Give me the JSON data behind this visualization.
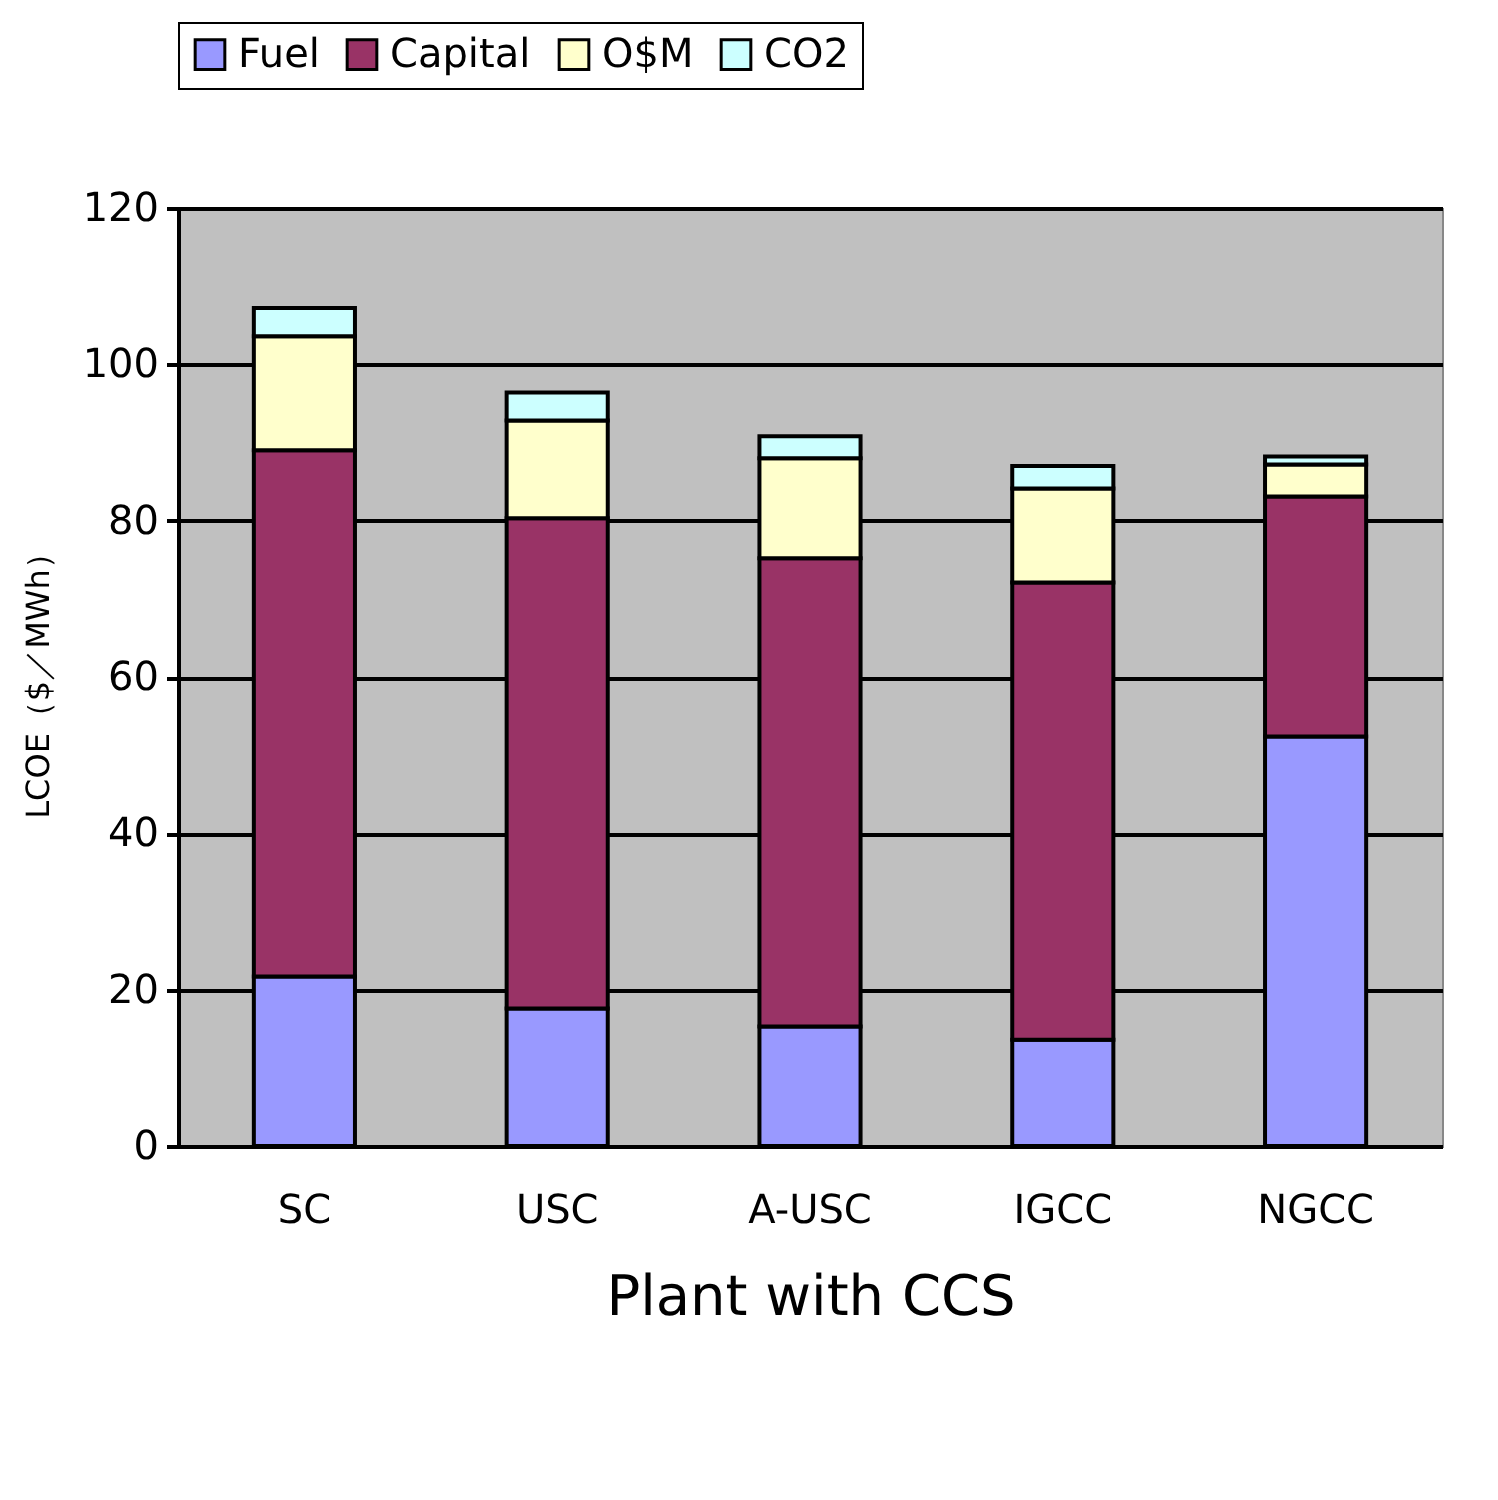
{
  "chart_data": {
    "type": "bar",
    "stacked": true,
    "xlabel": "Plant with CCS",
    "ylabel": "LCOE（$／MWh）",
    "categories": [
      "SC",
      "USC",
      "A-USC",
      "IGCC",
      "NGCC"
    ],
    "series": [
      {
        "name": "Fuel",
        "color": "#9999ff",
        "values": [
          21.7,
          17.6,
          15.3,
          13.6,
          52.4
        ]
      },
      {
        "name": "Capital",
        "color": "#993366",
        "values": [
          67.3,
          62.7,
          59.9,
          58.5,
          30.7
        ]
      },
      {
        "name": "O$M",
        "color": "#ffffcc",
        "values": [
          14.6,
          12.5,
          12.8,
          12.0,
          4.1
        ]
      },
      {
        "name": "CO2",
        "color": "#ccffff",
        "values": [
          3.6,
          3.6,
          2.8,
          2.9,
          1.0
        ]
      }
    ],
    "ylim": [
      0,
      120
    ],
    "yticks": [
      0,
      20,
      40,
      60,
      80,
      100,
      120
    ],
    "grid": "y",
    "legend": "top"
  }
}
